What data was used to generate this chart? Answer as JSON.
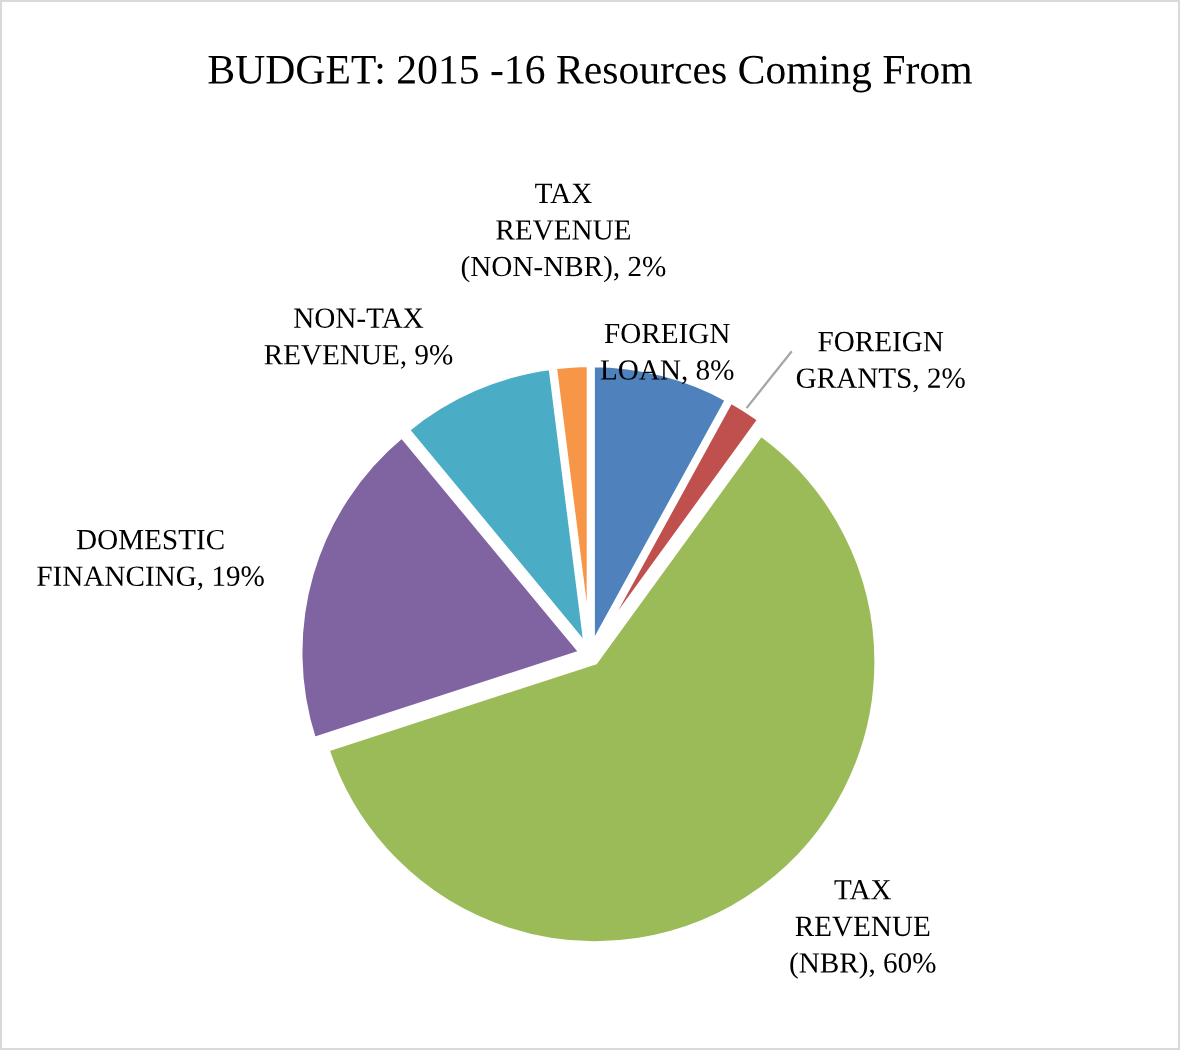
{
  "chart_data": {
    "type": "pie",
    "title": "BUDGET: 2015 -16 Resources Coming From",
    "categories": [
      "FOREIGN LOAN",
      "FOREIGN GRANTS",
      "TAX REVENUE (NBR)",
      "DOMESTIC FINANCING",
      "NON-TAX REVENUE",
      "TAX REVENUE (NON-NBR)"
    ],
    "values": [
      8,
      2,
      60,
      19,
      9,
      2
    ],
    "value_labels": [
      "8%",
      "2%",
      "60%",
      "19%",
      "9%",
      "2%"
    ],
    "colors": [
      "#4f81bd",
      "#c0504d",
      "#9bbb59",
      "#8064a2",
      "#4bacc6",
      "#f79646"
    ],
    "legend": false
  }
}
